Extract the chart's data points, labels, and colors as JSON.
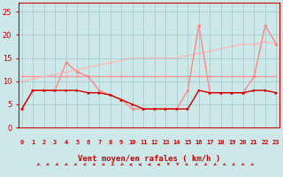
{
  "x": [
    0,
    1,
    2,
    3,
    4,
    5,
    6,
    7,
    8,
    9,
    10,
    11,
    12,
    13,
    14,
    15,
    16,
    17,
    18,
    19,
    20,
    21,
    22,
    23
  ],
  "wind_avg": [
    4,
    8,
    8,
    8,
    8,
    8,
    7.5,
    7.5,
    7,
    6,
    5,
    4,
    4,
    4,
    4,
    4,
    8,
    7.5,
    7.5,
    7.5,
    7.5,
    8,
    8,
    7.5
  ],
  "wind_gust": [
    4,
    8,
    8,
    8,
    14,
    12,
    11,
    8,
    7,
    6,
    4,
    4,
    4,
    4,
    4,
    8,
    22,
    7.5,
    7.5,
    7.5,
    7.5,
    11,
    22,
    18
  ],
  "trend_avg": [
    11,
    11,
    11,
    11,
    11,
    11,
    11,
    11,
    11,
    11,
    11,
    11,
    11,
    11,
    11,
    11,
    11,
    11,
    11,
    11,
    11,
    11,
    11,
    11
  ],
  "trend_gust": [
    10,
    10.5,
    11,
    11.5,
    12,
    12.5,
    13,
    13.5,
    14,
    14.5,
    15,
    15,
    15,
    15,
    15,
    15.5,
    16,
    16.5,
    17,
    17.5,
    18,
    18,
    18.5,
    18
  ],
  "wind_dirs": [
    225,
    225,
    225,
    225,
    225,
    225,
    225,
    225,
    225,
    225,
    270,
    270,
    270,
    270,
    180,
    180,
    135,
    225,
    225,
    225,
    225,
    225,
    225,
    225
  ],
  "bg_color": "#cce8e8",
  "grid_color": "#aacccc",
  "line_avg_color": "#cc0000",
  "line_gust_color": "#ff8888",
  "trend_avg_color": "#ff9999",
  "trend_gust_color": "#ffbbbb",
  "marker_avg_color": "#cc0000",
  "xlabel": "Vent moyen/en rafales ( km/h )",
  "ylim": [
    0,
    27
  ],
  "yticks": [
    0,
    5,
    10,
    15,
    20,
    25
  ],
  "xlim": [
    -0.3,
    23.3
  ]
}
